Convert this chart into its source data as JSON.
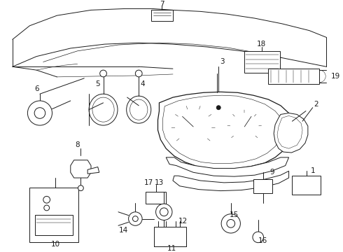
{
  "bg_color": "#ffffff",
  "line_color": "#1a1a1a",
  "fig_width": 4.9,
  "fig_height": 3.6,
  "dpi": 100,
  "label_fs": 7.5,
  "lw": 0.7
}
